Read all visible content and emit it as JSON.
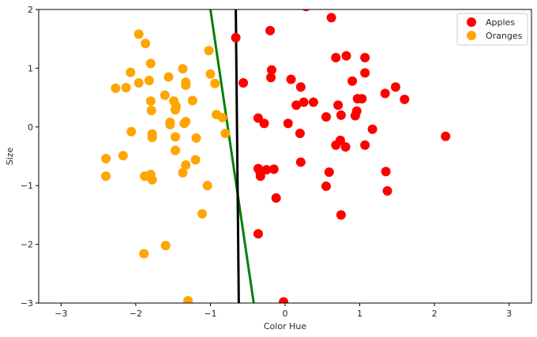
{
  "chart_data": {
    "type": "scatter",
    "xlabel": "Color Hue",
    "ylabel": "Size",
    "xlim": [
      -3.3,
      3.3
    ],
    "ylim": [
      -3,
      2
    ],
    "xticks": [
      -3,
      -2,
      -1,
      0,
      1,
      2,
      3
    ],
    "yticks": [
      -3,
      -2,
      -1,
      0,
      1,
      2
    ],
    "x_tick_labels": [
      "−3",
      "−2",
      "−1",
      "0",
      "1",
      "2",
      "3"
    ],
    "y_tick_labels": [
      "−3",
      "−2",
      "−1",
      "0",
      "1",
      "2"
    ],
    "grid": false,
    "legend_position": "top-right",
    "series": [
      {
        "name": "Apples",
        "color": "#ff0000",
        "points": [
          [
            0.28,
            2.05
          ],
          [
            0.62,
            1.86
          ],
          [
            -0.66,
            1.52
          ],
          [
            -0.2,
            1.64
          ],
          [
            -0.18,
            0.97
          ],
          [
            -0.19,
            0.84
          ],
          [
            -0.56,
            0.75
          ],
          [
            0.08,
            0.81
          ],
          [
            0.21,
            0.68
          ],
          [
            0.68,
            1.18
          ],
          [
            0.82,
            1.21
          ],
          [
            1.07,
            1.18
          ],
          [
            1.07,
            0.92
          ],
          [
            0.9,
            0.78
          ],
          [
            1.48,
            0.68
          ],
          [
            0.97,
            0.48
          ],
          [
            1.03,
            0.48
          ],
          [
            1.34,
            0.57
          ],
          [
            1.6,
            0.47
          ],
          [
            0.15,
            0.37
          ],
          [
            0.25,
            0.42
          ],
          [
            0.38,
            0.42
          ],
          [
            0.71,
            0.37
          ],
          [
            0.96,
            0.27
          ],
          [
            0.75,
            0.2
          ],
          [
            0.55,
            0.17
          ],
          [
            0.94,
            0.19
          ],
          [
            -0.36,
            0.15
          ],
          [
            -0.28,
            0.06
          ],
          [
            0.04,
            0.06
          ],
          [
            1.17,
            -0.04
          ],
          [
            0.2,
            -0.11
          ],
          [
            0.74,
            -0.23
          ],
          [
            0.68,
            -0.31
          ],
          [
            0.81,
            -0.34
          ],
          [
            1.07,
            -0.31
          ],
          [
            2.15,
            -0.16
          ],
          [
            0.21,
            -0.6
          ],
          [
            -0.36,
            -0.71
          ],
          [
            -0.34,
            -0.75
          ],
          [
            -0.25,
            -0.73
          ],
          [
            -0.15,
            -0.72
          ],
          [
            -0.33,
            -0.84
          ],
          [
            0.59,
            -0.77
          ],
          [
            1.35,
            -0.76
          ],
          [
            0.55,
            -1.01
          ],
          [
            1.37,
            -1.09
          ],
          [
            -0.12,
            -1.21
          ],
          [
            0.75,
            -1.5
          ],
          [
            -0.36,
            -1.82
          ],
          [
            -0.02,
            -2.98
          ]
        ]
      },
      {
        "name": "Oranges",
        "color": "#ffa500",
        "points": [
          [
            -1.96,
            1.58
          ],
          [
            -1.87,
            1.42
          ],
          [
            -1.02,
            1.3
          ],
          [
            -1.8,
            1.08
          ],
          [
            -1.37,
            0.99
          ],
          [
            -2.07,
            0.93
          ],
          [
            -1.0,
            0.9
          ],
          [
            -1.56,
            0.85
          ],
          [
            -1.82,
            0.79
          ],
          [
            -1.96,
            0.75
          ],
          [
            -1.33,
            0.76
          ],
          [
            -0.94,
            0.74
          ],
          [
            -2.27,
            0.66
          ],
          [
            -2.13,
            0.67
          ],
          [
            -1.33,
            0.71
          ],
          [
            -1.61,
            0.54
          ],
          [
            -1.8,
            0.44
          ],
          [
            -1.49,
            0.44
          ],
          [
            -1.24,
            0.45
          ],
          [
            -1.46,
            0.35
          ],
          [
            -1.47,
            0.29
          ],
          [
            -1.79,
            0.28
          ],
          [
            -0.92,
            0.21
          ],
          [
            -0.84,
            0.16
          ],
          [
            -1.33,
            0.09
          ],
          [
            -1.35,
            0.06
          ],
          [
            -1.54,
            0.08
          ],
          [
            -1.54,
            0.04
          ],
          [
            -2.06,
            -0.08
          ],
          [
            -1.78,
            -0.12
          ],
          [
            -1.78,
            -0.18
          ],
          [
            -1.47,
            -0.17
          ],
          [
            -1.19,
            -0.19
          ],
          [
            -0.8,
            -0.11
          ],
          [
            -1.47,
            -0.4
          ],
          [
            -2.17,
            -0.49
          ],
          [
            -2.4,
            -0.54
          ],
          [
            -1.2,
            -0.56
          ],
          [
            -1.33,
            -0.65
          ],
          [
            -1.37,
            -0.78
          ],
          [
            -1.88,
            -0.84
          ],
          [
            -1.8,
            -0.81
          ],
          [
            -1.78,
            -0.9
          ],
          [
            -2.4,
            -0.84
          ],
          [
            -1.04,
            -1.0
          ],
          [
            -1.11,
            -1.48
          ],
          [
            -1.6,
            -2.02
          ],
          [
            -1.89,
            -2.16
          ],
          [
            -1.3,
            -2.96
          ]
        ]
      }
    ],
    "lines": [
      {
        "color": "#008000",
        "x1": -1.0,
        "y1": 2.0,
        "x2": -0.42,
        "y2": -3.0
      },
      {
        "color": "#000000",
        "x1": -0.66,
        "y1": 2.0,
        "x2": -0.62,
        "y2": -3.0
      }
    ]
  }
}
